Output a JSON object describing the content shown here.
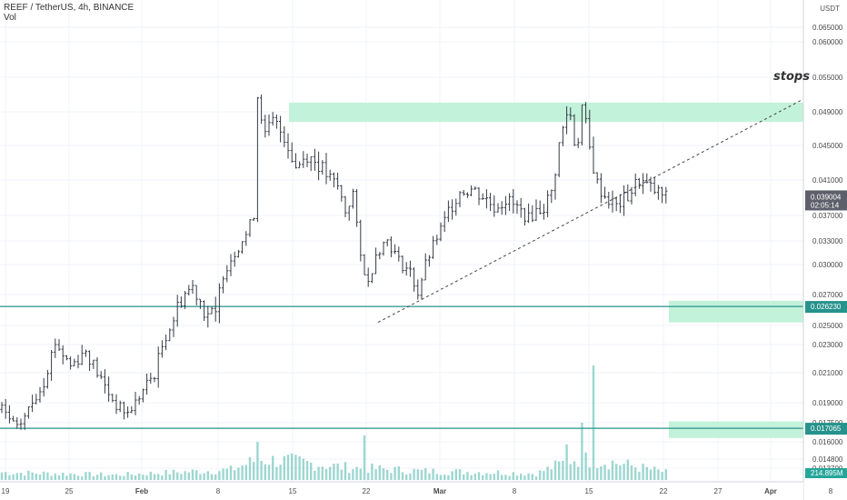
{
  "header": {
    "symbol_line": "REEF / TetherUS, 4h, BINANCE",
    "indicator": "Vol"
  },
  "chart_data": {
    "type": "ohlc",
    "title": "REEF / TetherUS, 4h, BINANCE",
    "ylabel": "USDT",
    "ylim": [
      0.0131,
      0.066
    ],
    "y_ticks": [
      "0.065000",
      "0.060000",
      "0.055000",
      "0.049000",
      "0.045000",
      "0.041000",
      "0.037000",
      "0.033000",
      "0.030000",
      "0.027000",
      "0.025000",
      "0.023000",
      "0.021000",
      "0.019000",
      "0.017500",
      "0.016000",
      "0.014800",
      "0.013700"
    ],
    "x_ticks": [
      "19",
      "25",
      "Feb",
      "8",
      "15",
      "22",
      "Mar",
      "8",
      "15",
      "22",
      "27",
      "Apr",
      "8"
    ],
    "last_price": "0.039004",
    "countdown": "02:05:14",
    "last_price_color": "#5d606b",
    "levels": [
      {
        "price": 0.02623,
        "label": "0.026230",
        "color": "#26938c"
      },
      {
        "price": 0.017065,
        "label": "0.017065",
        "color": "#26938c"
      }
    ],
    "zones": [
      {
        "y_top": 0.0506,
        "y_bottom": 0.0478,
        "color": "#b9f0d3"
      },
      {
        "y_top": 0.0266,
        "y_bottom": 0.0252,
        "color": "#b9f0d3"
      },
      {
        "y_top": 0.0176,
        "y_bottom": 0.0163,
        "color": "#b9f0d3"
      }
    ],
    "trendline": {
      "from_price": 0.0252,
      "to_price": 0.0512,
      "label": "stops"
    },
    "volume": {
      "label": "214.895M",
      "color": "#26a69a"
    },
    "anchors": [
      [
        0,
        0.0185
      ],
      [
        4,
        0.017
      ],
      [
        8,
        0.019
      ],
      [
        11,
        0.0205
      ],
      [
        14,
        0.0232
      ],
      [
        18,
        0.0215
      ],
      [
        22,
        0.0226
      ],
      [
        26,
        0.0205
      ],
      [
        30,
        0.0188
      ],
      [
        33,
        0.0182
      ],
      [
        36,
        0.0194
      ],
      [
        40,
        0.021
      ],
      [
        44,
        0.0248
      ],
      [
        47,
        0.0268
      ],
      [
        50,
        0.0278
      ],
      [
        53,
        0.026
      ],
      [
        56,
        0.0255
      ],
      [
        58,
        0.0292
      ],
      [
        61,
        0.0315
      ],
      [
        64,
        0.034
      ],
      [
        66,
        0.0372
      ],
      [
        67,
        0.0518
      ],
      [
        69,
        0.046
      ],
      [
        71,
        0.0478
      ],
      [
        74,
        0.0462
      ],
      [
        77,
        0.0425
      ],
      [
        80,
        0.044
      ],
      [
        83,
        0.0428
      ],
      [
        86,
        0.041
      ],
      [
        88,
        0.0402
      ],
      [
        90,
        0.0375
      ],
      [
        92,
        0.0395
      ],
      [
        94,
        0.031
      ],
      [
        96,
        0.028
      ],
      [
        98,
        0.0315
      ],
      [
        101,
        0.0332
      ],
      [
        104,
        0.0305
      ],
      [
        107,
        0.0292
      ],
      [
        109,
        0.0272
      ],
      [
        111,
        0.03
      ],
      [
        114,
        0.0335
      ],
      [
        117,
        0.0375
      ],
      [
        120,
        0.0398
      ],
      [
        123,
        0.04
      ],
      [
        126,
        0.0392
      ],
      [
        129,
        0.038
      ],
      [
        132,
        0.0388
      ],
      [
        135,
        0.0378
      ],
      [
        138,
        0.0365
      ],
      [
        140,
        0.0375
      ],
      [
        142,
        0.038
      ],
      [
        144,
        0.0395
      ],
      [
        146,
        0.045
      ],
      [
        148,
        0.0488
      ],
      [
        149,
        0.0485
      ],
      [
        150,
        0.0455
      ],
      [
        151,
        0.046
      ],
      [
        152,
        0.05
      ],
      [
        154,
        0.0445
      ],
      [
        156,
        0.0405
      ],
      [
        158,
        0.0392
      ],
      [
        161,
        0.038
      ],
      [
        164,
        0.0392
      ],
      [
        167,
        0.041
      ],
      [
        170,
        0.04
      ],
      [
        172,
        0.0395
      ],
      [
        174,
        0.039
      ]
    ],
    "volume_profile": [
      [
        0,
        0.6
      ],
      [
        30,
        0.4
      ],
      [
        60,
        0.8
      ],
      [
        67,
        1.6
      ],
      [
        75,
        1.5
      ],
      [
        90,
        1.0
      ],
      [
        110,
        0.7
      ],
      [
        130,
        0.6
      ],
      [
        140,
        0.5
      ],
      [
        150,
        1.7
      ],
      [
        160,
        1.4
      ],
      [
        174,
        0.6
      ]
    ],
    "volume_spikes": [
      [
        67,
        3.0
      ],
      [
        95,
        3.5
      ],
      [
        152,
        4.5
      ],
      [
        155,
        9.0
      ],
      [
        148,
        2.8
      ]
    ]
  }
}
